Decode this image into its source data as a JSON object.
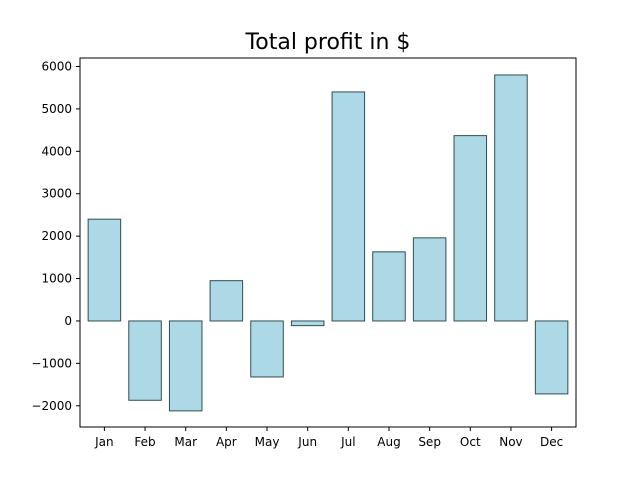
{
  "chart_data": {
    "type": "bar",
    "title": "Total profit in $",
    "xlabel": "",
    "ylabel": "",
    "categories": [
      "Jan",
      "Feb",
      "Mar",
      "Apr",
      "May",
      "Jun",
      "Jul",
      "Aug",
      "Sep",
      "Oct",
      "Nov",
      "Dec"
    ],
    "values": [
      2400,
      -1870,
      -2120,
      950,
      -1320,
      -110,
      5400,
      1630,
      1960,
      4370,
      5800,
      -1720
    ],
    "ylim": [
      -2500,
      6200
    ],
    "yticks": [
      -2000,
      -1000,
      0,
      1000,
      2000,
      3000,
      4000,
      5000,
      6000
    ],
    "ytick_labels": [
      "−2000",
      "−1000",
      "0",
      "1000",
      "2000",
      "3000",
      "4000",
      "5000",
      "6000"
    ],
    "grid": false,
    "bar_color": "#add8e6",
    "edge_color": "#2f4f4f"
  }
}
